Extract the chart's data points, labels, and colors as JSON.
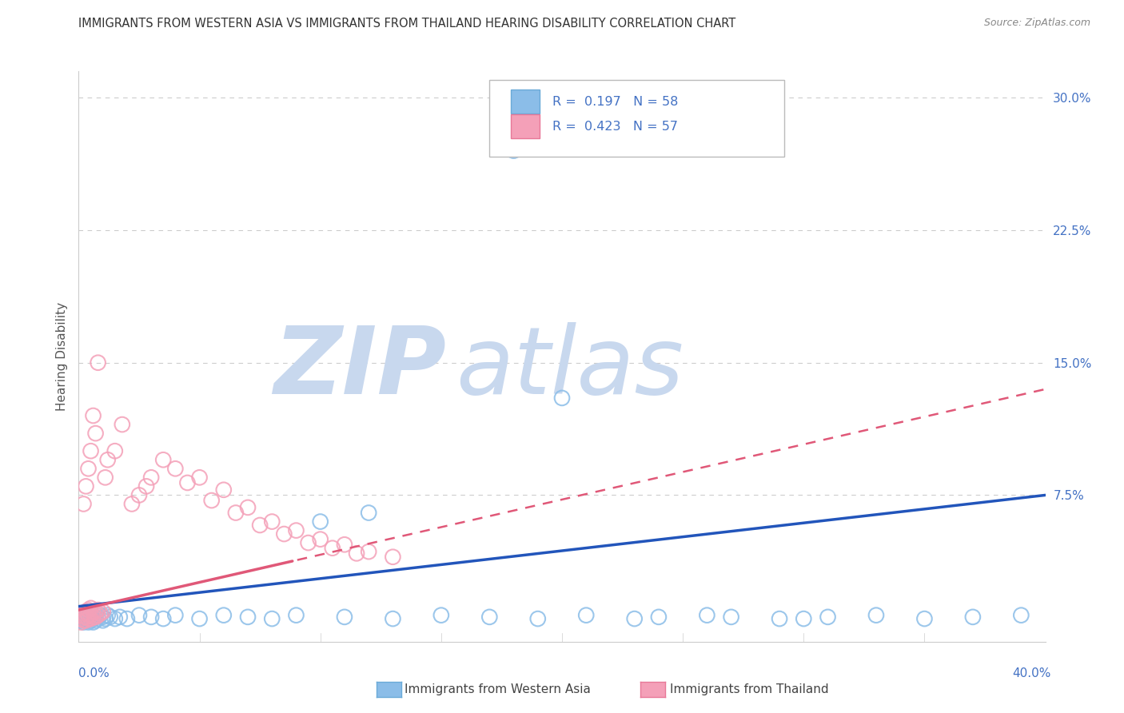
{
  "title": "IMMIGRANTS FROM WESTERN ASIA VS IMMIGRANTS FROM THAILAND HEARING DISABILITY CORRELATION CHART",
  "source": "Source: ZipAtlas.com",
  "ylabel": "Hearing Disability",
  "ytick_vals": [
    0.075,
    0.15,
    0.225,
    0.3
  ],
  "ytick_labels": [
    "7.5%",
    "15.0%",
    "22.5%",
    "30.0%"
  ],
  "xlim": [
    0.0,
    0.4
  ],
  "ylim": [
    -0.008,
    0.315
  ],
  "series1_color": "#8bbde8",
  "series2_color": "#f4a0b8",
  "series1_edge": "#6aaad8",
  "series2_edge": "#e87898",
  "line1_color": "#2255bb",
  "line2_color": "#e05878",
  "watermark_zip": "ZIP",
  "watermark_atlas": "atlas",
  "watermark_color_zip": "#c8d8ee",
  "watermark_color_atlas": "#c8d8ee",
  "background_color": "#ffffff",
  "grid_color": "#cccccc",
  "title_fontsize": 10.5,
  "source_fontsize": 9,
  "tick_label_color": "#4472c4",
  "legend_r1_val": "0.197",
  "legend_r1_n": "58",
  "legend_r2_val": "0.423",
  "legend_r2_n": "57",
  "blue_trend_start_y": 0.012,
  "blue_trend_end_y": 0.075,
  "pink_trend_start_y": 0.01,
  "pink_trend_solid_end_x": 0.09,
  "pink_trend_end_y": 0.135,
  "western_asia_x": [
    0.001,
    0.001,
    0.002,
    0.002,
    0.002,
    0.003,
    0.003,
    0.003,
    0.004,
    0.004,
    0.004,
    0.005,
    0.005,
    0.005,
    0.006,
    0.006,
    0.007,
    0.007,
    0.008,
    0.009,
    0.01,
    0.01,
    0.011,
    0.012,
    0.013,
    0.015,
    0.017,
    0.02,
    0.025,
    0.03,
    0.035,
    0.04,
    0.05,
    0.06,
    0.07,
    0.08,
    0.09,
    0.11,
    0.13,
    0.15,
    0.17,
    0.19,
    0.21,
    0.24,
    0.26,
    0.29,
    0.31,
    0.33,
    0.35,
    0.37,
    0.39,
    0.18,
    0.2,
    0.12,
    0.1,
    0.23,
    0.27,
    0.3
  ],
  "western_asia_y": [
    0.004,
    0.006,
    0.003,
    0.005,
    0.007,
    0.004,
    0.005,
    0.007,
    0.003,
    0.005,
    0.006,
    0.004,
    0.006,
    0.008,
    0.003,
    0.005,
    0.004,
    0.006,
    0.005,
    0.007,
    0.004,
    0.006,
    0.005,
    0.007,
    0.006,
    0.005,
    0.006,
    0.005,
    0.007,
    0.006,
    0.005,
    0.007,
    0.005,
    0.007,
    0.006,
    0.005,
    0.007,
    0.006,
    0.005,
    0.007,
    0.006,
    0.005,
    0.007,
    0.006,
    0.007,
    0.005,
    0.006,
    0.007,
    0.005,
    0.006,
    0.007,
    0.27,
    0.13,
    0.065,
    0.06,
    0.005,
    0.006,
    0.005
  ],
  "thailand_x": [
    0.001,
    0.001,
    0.001,
    0.002,
    0.002,
    0.002,
    0.003,
    0.003,
    0.003,
    0.004,
    0.004,
    0.004,
    0.005,
    0.005,
    0.005,
    0.006,
    0.006,
    0.007,
    0.007,
    0.008,
    0.008,
    0.009,
    0.01,
    0.011,
    0.012,
    0.015,
    0.018,
    0.022,
    0.028,
    0.035,
    0.04,
    0.05,
    0.06,
    0.07,
    0.08,
    0.09,
    0.1,
    0.11,
    0.12,
    0.025,
    0.03,
    0.045,
    0.055,
    0.065,
    0.075,
    0.085,
    0.095,
    0.105,
    0.115,
    0.13,
    0.008,
    0.006,
    0.005,
    0.007,
    0.004,
    0.003,
    0.002
  ],
  "thailand_y": [
    0.003,
    0.005,
    0.007,
    0.004,
    0.006,
    0.008,
    0.004,
    0.006,
    0.009,
    0.005,
    0.007,
    0.01,
    0.005,
    0.007,
    0.011,
    0.006,
    0.009,
    0.006,
    0.009,
    0.007,
    0.01,
    0.008,
    0.009,
    0.085,
    0.095,
    0.1,
    0.115,
    0.07,
    0.08,
    0.095,
    0.09,
    0.085,
    0.078,
    0.068,
    0.06,
    0.055,
    0.05,
    0.047,
    0.043,
    0.075,
    0.085,
    0.082,
    0.072,
    0.065,
    0.058,
    0.053,
    0.048,
    0.045,
    0.042,
    0.04,
    0.15,
    0.12,
    0.1,
    0.11,
    0.09,
    0.08,
    0.07
  ]
}
